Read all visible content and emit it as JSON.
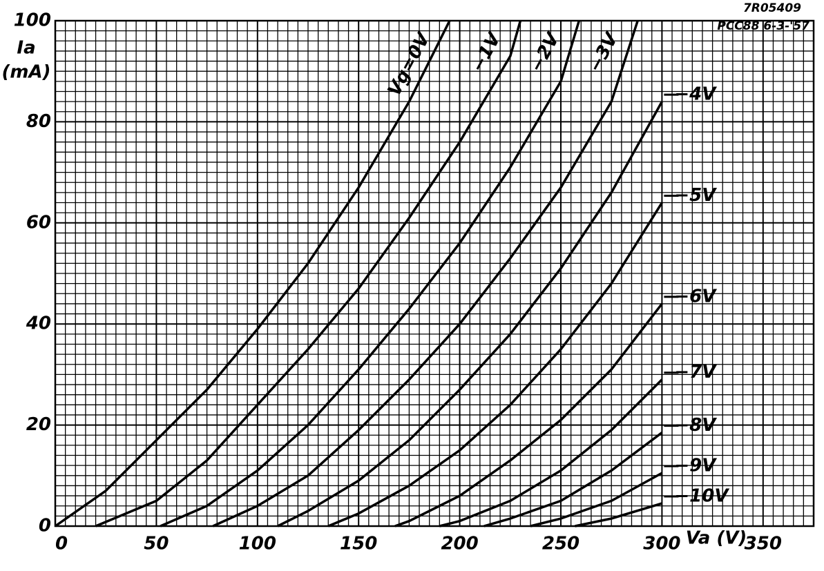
{
  "chart_data": {
    "type": "line",
    "title": "7R05409",
    "subtitle": "PCC88 6-3-'57",
    "ylabel": "Ia",
    "yunit": "(mA)",
    "xlabel": "Va (V)",
    "xlim": [
      0,
      375
    ],
    "ylim": [
      0,
      100
    ],
    "xticks": [
      0,
      50,
      100,
      150,
      200,
      250,
      300,
      350
    ],
    "yticks": [
      0,
      20,
      40,
      60,
      80,
      100
    ],
    "grid": true,
    "minor_xstep": 5,
    "minor_ystep": 2,
    "color": "#000000",
    "series": [
      {
        "name": "Vg=0V",
        "x": [
          0,
          25,
          50,
          75,
          100,
          125,
          150,
          175,
          195
        ],
        "values": [
          0,
          7,
          17,
          27,
          39,
          52,
          67,
          84,
          100
        ]
      },
      {
        "name": "−1V",
        "x": [
          20,
          50,
          75,
          100,
          125,
          150,
          175,
          200,
          225,
          230
        ],
        "values": [
          0,
          5,
          13,
          24,
          35,
          47,
          61,
          76,
          93,
          100
        ]
      },
      {
        "name": "−2V",
        "x": [
          52,
          75,
          100,
          125,
          150,
          175,
          200,
          225,
          250,
          259
        ],
        "values": [
          0,
          4,
          11,
          20,
          31,
          43,
          56,
          71,
          88,
          100
        ]
      },
      {
        "name": "−3V",
        "x": [
          78,
          100,
          125,
          150,
          175,
          200,
          225,
          250,
          275,
          288
        ],
        "values": [
          0,
          4,
          10,
          19,
          29,
          40,
          53,
          67,
          84,
          100
        ]
      },
      {
        "name": "−4V",
        "x": [
          110,
          125,
          150,
          175,
          200,
          225,
          250,
          275,
          300
        ],
        "values": [
          0,
          3,
          9,
          17,
          27,
          38,
          51,
          66,
          84
        ]
      },
      {
        "name": "−5V",
        "x": [
          135,
          150,
          175,
          200,
          225,
          250,
          275,
          300
        ],
        "values": [
          0,
          2.5,
          8,
          15,
          24,
          35,
          48,
          64
        ]
      },
      {
        "name": "−6V",
        "x": [
          168,
          175,
          200,
          225,
          250,
          275,
          300
        ],
        "values": [
          0,
          1,
          6,
          13,
          21,
          31,
          44
        ]
      },
      {
        "name": "−7V",
        "x": [
          190,
          200,
          225,
          250,
          275,
          300
        ],
        "values": [
          0,
          1,
          5,
          11,
          19,
          29
        ]
      },
      {
        "name": "−8V",
        "x": [
          212,
          225,
          250,
          275,
          300
        ],
        "values": [
          0,
          1.5,
          5,
          11,
          18.5
        ]
      },
      {
        "name": "−9V",
        "x": [
          235,
          250,
          275,
          300
        ],
        "values": [
          0,
          1.5,
          5,
          10.5
        ]
      },
      {
        "name": "−10V",
        "x": [
          257,
          275,
          300
        ],
        "values": [
          0,
          1.5,
          4.5
        ]
      }
    ]
  }
}
